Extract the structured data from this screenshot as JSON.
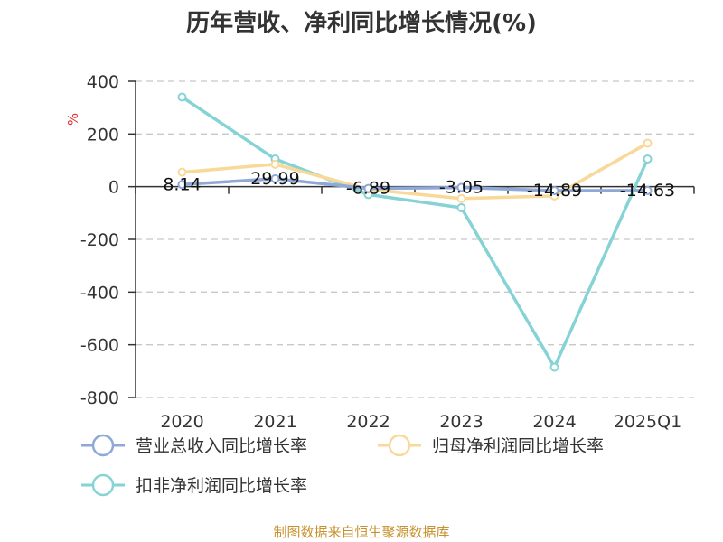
{
  "chart_data": {
    "type": "line",
    "title": "历年营收、净利同比增长情况(%)",
    "ylabel": "%",
    "xlabel": "",
    "categories": [
      "2020",
      "2021",
      "2022",
      "2023",
      "2024",
      "2025Q1"
    ],
    "ylim": [
      -800,
      400
    ],
    "yticks": [
      400,
      200,
      0,
      -200,
      -400,
      -600,
      -800
    ],
    "grid": "horizontal-dashed",
    "legend_position": "bottom",
    "series": [
      {
        "name": "营业总收入同比增长率",
        "color": "#8fa8d8",
        "values": [
          8.14,
          29.99,
          -6.89,
          -3.05,
          -14.89,
          -14.63
        ],
        "labels": [
          "8.14",
          "29.99",
          "-6.89",
          "-3.05",
          "-14.89",
          "-14.63"
        ]
      },
      {
        "name": "归母净利润同比增长率",
        "color": "#f8d99a",
        "values": [
          55,
          85,
          -10,
          -45,
          -35,
          165
        ]
      },
      {
        "name": "扣非净利润同比增长率",
        "color": "#86d3d6",
        "values": [
          340,
          105,
          -30,
          -80,
          -685,
          105
        ]
      }
    ]
  },
  "source_text": "制图数据来自恒生聚源数据库"
}
